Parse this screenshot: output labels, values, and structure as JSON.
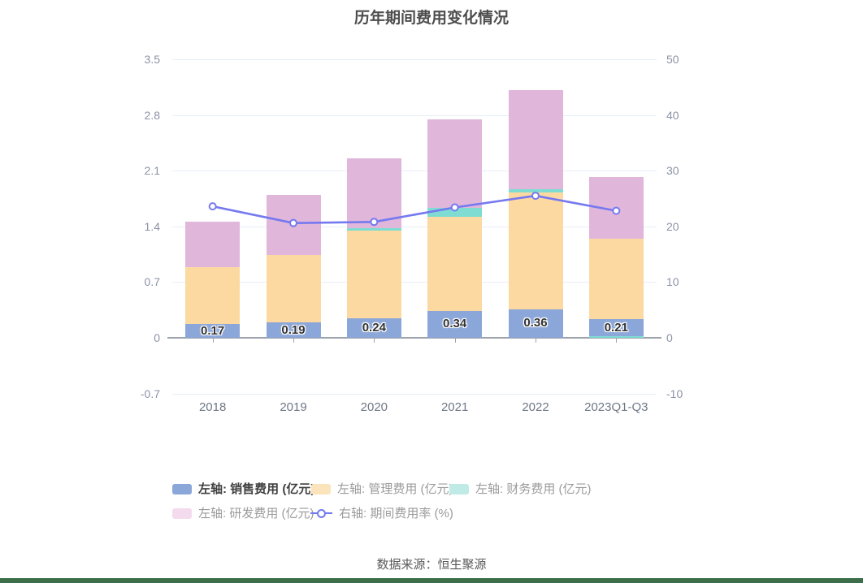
{
  "title": "历年期间费用变化情况",
  "source_note": "数据来源：恒生聚源",
  "colors": {
    "sales": "#8BA7D9",
    "admin": "#FCD9A1",
    "finance": "#7EDCD3",
    "rnd": "#E1B6DB",
    "rate": "#7579EF",
    "legend_sales": "#8BA7D9",
    "legend_admin": "#FBE3BC",
    "legend_finance": "#BFEAE5",
    "legend_rnd": "#F3DBED",
    "grid_line": "#E7EDF7",
    "zero_axis": "#9CA3AD",
    "y_label": "#8A93A6",
    "x_label": "#6F7887",
    "bar_label": "#333333",
    "legend_label_emphasis": "#404040",
    "legend_label": "#9B9B9B",
    "bottom_bar": "#3C6F49"
  },
  "chart_data": {
    "type": "bar",
    "subtype": "stacked-bars-with-line",
    "title": "历年期间费用变化情况",
    "categories": [
      "2018",
      "2019",
      "2020",
      "2021",
      "2022",
      "2023Q1-Q3"
    ],
    "series": [
      {
        "key": "sales",
        "name": "左轴: 销售费用 (亿元)",
        "type": "bar",
        "axis": "left",
        "values": [
          0.17,
          0.19,
          0.24,
          0.34,
          0.36,
          0.21
        ]
      },
      {
        "key": "admin",
        "name": "左轴: 管理费用 (亿元)",
        "type": "bar",
        "axis": "left",
        "values": [
          0.72,
          0.85,
          1.11,
          1.18,
          1.47,
          1.01
        ]
      },
      {
        "key": "finance",
        "name": "左轴: 财务费用 (亿元)",
        "type": "bar",
        "axis": "left",
        "values": [
          0.0,
          0.0,
          0.03,
          0.11,
          0.04,
          0.02
        ]
      },
      {
        "key": "rnd",
        "name": "左轴: 研发费用 (亿元)",
        "type": "bar",
        "axis": "left",
        "values": [
          0.57,
          0.76,
          0.88,
          1.11,
          1.24,
          0.78
        ]
      },
      {
        "key": "rate",
        "name": "右轴: 期间费用率 (%)",
        "type": "line",
        "axis": "right",
        "values": [
          23.6,
          20.6,
          20.8,
          23.4,
          25.5,
          22.8
        ]
      }
    ],
    "bar_labels": [
      "0.17",
      "0.19",
      "0.24",
      "0.34",
      "0.36",
      "0.21"
    ],
    "left_axis": {
      "min": -0.7,
      "max": 3.5,
      "ticks": [
        3.5,
        2.8,
        2.1,
        1.4,
        0.7,
        0,
        -0.7
      ]
    },
    "right_axis": {
      "min": -10,
      "max": 50,
      "ticks": [
        50,
        40,
        30,
        20,
        10,
        0,
        -10
      ]
    },
    "stack_order": [
      "sales",
      "admin",
      "finance",
      "rnd"
    ],
    "stack_order_last_category": [
      "finance",
      "sales",
      "admin",
      "rnd"
    ],
    "grid": true,
    "legend_position": "bottom"
  },
  "legend": {
    "rows": [
      [
        {
          "key": "sales",
          "label": "左轴: 销售费用 (亿元)",
          "type": "bar",
          "emphasis": true
        },
        {
          "key": "admin",
          "label": "左轴: 管理费用 (亿元)",
          "type": "bar",
          "emphasis": false
        },
        {
          "key": "finance",
          "label": "左轴: 财务费用 (亿元)",
          "type": "bar",
          "emphasis": false
        }
      ],
      [
        {
          "key": "rnd",
          "label": "左轴: 研发费用 (亿元)",
          "type": "bar",
          "emphasis": false
        },
        {
          "key": "rate",
          "label": "右轴: 期间费用率 (%)",
          "type": "line",
          "emphasis": false
        }
      ]
    ]
  }
}
